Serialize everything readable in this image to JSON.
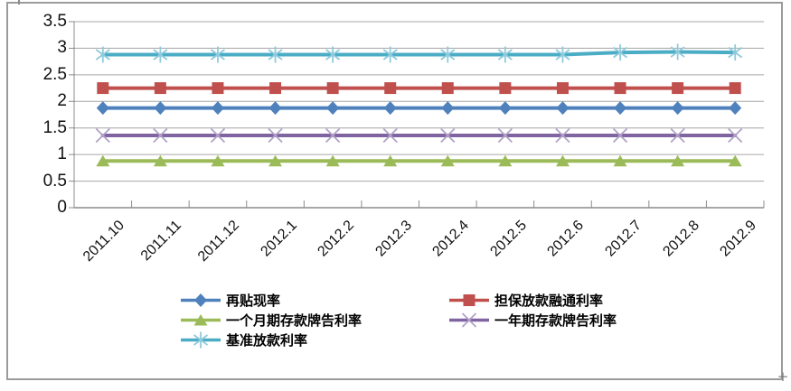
{
  "figure": {
    "background": "#FFFFFF",
    "border_color": "#9B9B9B",
    "resize_handle_glyph": "+"
  },
  "chart_data": {
    "type": "line",
    "title": "",
    "xlabel": "",
    "ylabel": "",
    "categories": [
      "2011.10",
      "2011.11",
      "2011.12",
      "2012.1",
      "2012.2",
      "2012.3",
      "2012.4",
      "2012.5",
      "2012.6",
      "2012.7",
      "2012.8",
      "2012.9"
    ],
    "series": [
      {
        "name": "再贴现率",
        "color": "#4F81BD",
        "marker": "diamond",
        "marker_color": "#4F81BD",
        "values": [
          1.875,
          1.875,
          1.875,
          1.875,
          1.875,
          1.875,
          1.875,
          1.875,
          1.875,
          1.875,
          1.875,
          1.875
        ]
      },
      {
        "name": "担保放款融通利率",
        "color": "#C0504D",
        "marker": "square",
        "marker_color": "#C0504D",
        "values": [
          2.25,
          2.25,
          2.25,
          2.25,
          2.25,
          2.25,
          2.25,
          2.25,
          2.25,
          2.25,
          2.25,
          2.25
        ]
      },
      {
        "name": "一个月期存款牌告利率",
        "color": "#9BBB59",
        "marker": "triangle",
        "marker_color": "#9BBB59",
        "values": [
          0.88,
          0.88,
          0.88,
          0.88,
          0.88,
          0.88,
          0.88,
          0.88,
          0.88,
          0.88,
          0.88,
          0.88
        ]
      },
      {
        "name": "一年期存款牌告利率",
        "color": "#8064A2",
        "marker": "x",
        "marker_color": "#B2A2C7",
        "values": [
          1.36,
          1.36,
          1.36,
          1.36,
          1.36,
          1.36,
          1.36,
          1.36,
          1.36,
          1.36,
          1.36,
          1.36
        ]
      },
      {
        "name": "基准放款利率",
        "color": "#4BACC6",
        "marker": "asterisk",
        "marker_color": "#8FCBDC",
        "values": [
          2.88,
          2.88,
          2.88,
          2.88,
          2.88,
          2.88,
          2.88,
          2.88,
          2.88,
          2.92,
          2.93,
          2.92
        ]
      }
    ],
    "y_axis": {
      "min": 0,
      "max": 3.5,
      "step": 0.5,
      "ticks": [
        0,
        0.5,
        1,
        1.5,
        2,
        2.5,
        3,
        3.5
      ],
      "tick_labels": [
        "0",
        "0.5",
        "1",
        "1.5",
        "2",
        "2.5",
        "3",
        "3.5"
      ]
    },
    "x_axis": {
      "label_rotation_deg": 45
    },
    "grid": true,
    "legend": {
      "position": "bottom",
      "columns": 2
    },
    "colors": {
      "gridline": "#A6A6A6",
      "axis": "#8C8C8C",
      "text": "#000000"
    }
  }
}
